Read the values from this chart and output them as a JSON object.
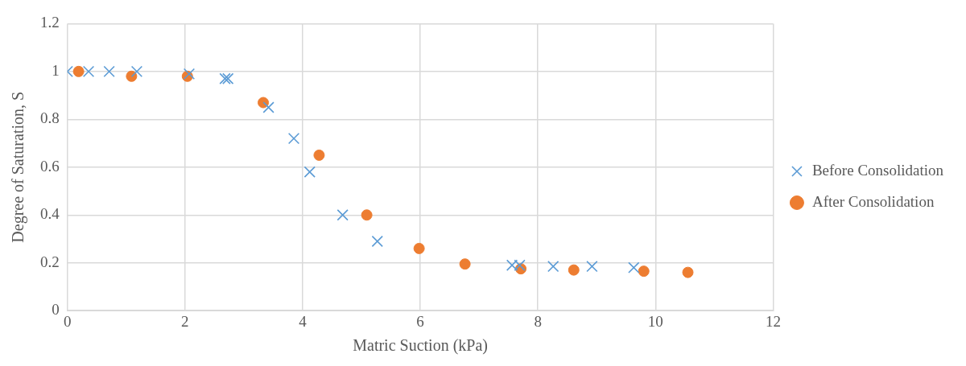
{
  "chart_data": {
    "type": "scatter",
    "xlabel": "Matric Suction (kPa)",
    "ylabel": "Degree of Saturation, S",
    "xlim": [
      0,
      12
    ],
    "xticks": [
      0,
      2,
      4,
      6,
      8,
      10,
      12
    ],
    "ylim": [
      0,
      1.2
    ],
    "yticks": [
      0,
      {
        "value": 0.2,
        "label": "0.2"
      },
      {
        "value": 0.4,
        "label": "0.4"
      },
      {
        "value": 0.6,
        "label": "0.6"
      },
      {
        "value": 0.8,
        "label": "0.8"
      },
      1,
      {
        "value": 1.2,
        "label": "1.2"
      }
    ],
    "grid": true,
    "legend": "right",
    "series": [
      {
        "name": "Before Consolidation",
        "color": "#5b9bd5",
        "marker": "cross",
        "x": [
          0,
          0.36,
          0.71,
          1.18,
          2.07,
          2.68,
          2.73,
          3.42,
          3.85,
          4.12,
          4.68,
          5.27,
          7.56,
          7.69,
          8.26,
          8.92,
          9.63
        ],
        "values": [
          1.0,
          1.0,
          1.0,
          1.0,
          0.99,
          0.97,
          0.97,
          0.85,
          0.72,
          0.58,
          0.4,
          0.29,
          0.19,
          0.19,
          0.185,
          0.185,
          0.18
        ]
      },
      {
        "name": "After Consolidation",
        "color": "#ed7d31",
        "marker": "circle",
        "x": [
          0.19,
          1.09,
          2.04,
          3.33,
          4.28,
          5.09,
          5.98,
          6.76,
          7.71,
          8.61,
          9.8,
          10.55
        ],
        "values": [
          1.0,
          0.98,
          0.98,
          0.87,
          0.65,
          0.4,
          0.26,
          0.195,
          0.175,
          0.17,
          0.165,
          0.16
        ]
      }
    ]
  }
}
